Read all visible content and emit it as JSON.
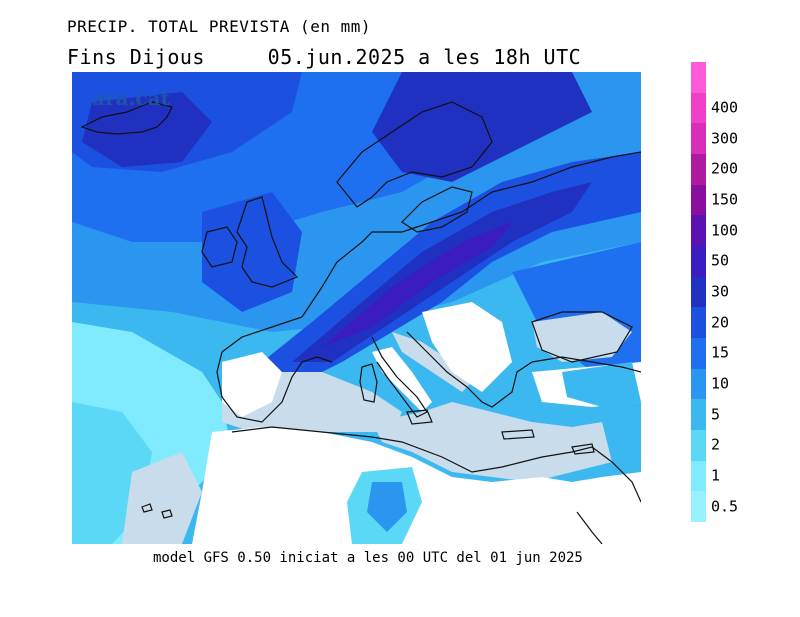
{
  "title": "PRECIP. TOTAL PREVISTA (en mm)",
  "subtitle": "Fins Dijous     05.jun.2025 a les 18h UTC",
  "watermark": "ara.cat",
  "footer": "model GFS 0.50 iniciat a les 00 UTC del 01 jun 2025",
  "legend": {
    "levels": [
      {
        "label": "0.5",
        "color": "#99f0ff"
      },
      {
        "label": "1",
        "color": "#80eaff"
      },
      {
        "label": "2",
        "color": "#5ad8f5"
      },
      {
        "label": "5",
        "color": "#3cb8f0"
      },
      {
        "label": "10",
        "color": "#2a96f0"
      },
      {
        "label": "15",
        "color": "#1e70f0"
      },
      {
        "label": "20",
        "color": "#1c50e0"
      },
      {
        "label": "30",
        "color": "#2030c0"
      },
      {
        "label": "50",
        "color": "#3a1cc0"
      },
      {
        "label": "100",
        "color": "#5a12b0"
      },
      {
        "label": "150",
        "color": "#8a0ea0"
      },
      {
        "label": "200",
        "color": "#b01aa0"
      },
      {
        "label": "300",
        "color": "#d82eb8"
      },
      {
        "label": "400",
        "color": "#f040c8"
      },
      {
        "label": "",
        "color": "#ff5ad8"
      }
    ]
  },
  "colors": {
    "land_dry": "#ffffff",
    "sea_dry": "#c8dcec",
    "coastline": "#111111"
  }
}
